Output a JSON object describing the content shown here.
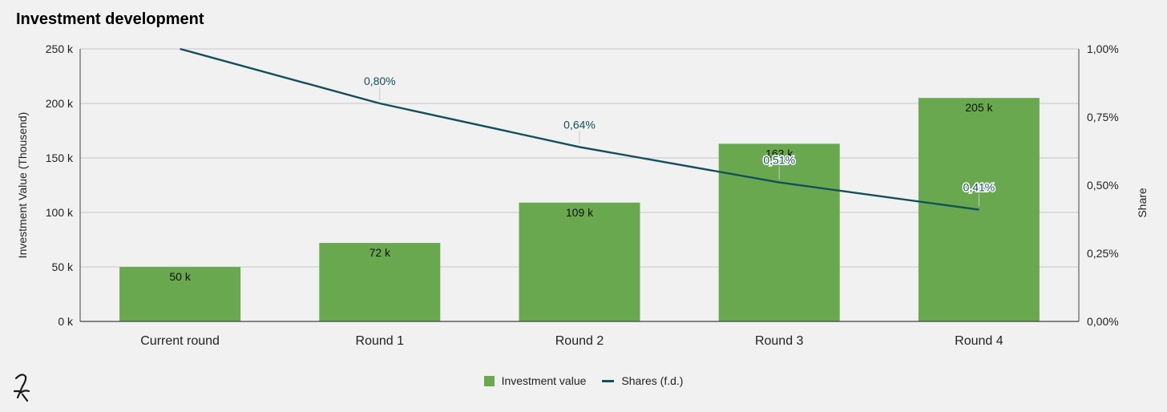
{
  "title": "Investment development",
  "colors": {
    "bar": "#6aa84f",
    "line": "#134f5c",
    "grid": "#c8c8c8",
    "axis": "#444444"
  },
  "chart_data": {
    "type": "bar",
    "title": "Investment development",
    "categories": [
      "Current round",
      "Round 1",
      "Round 2",
      "Round 3",
      "Round 4"
    ],
    "series": [
      {
        "name": "Investment value",
        "type": "bar",
        "axis": "left",
        "values": [
          50,
          72,
          109,
          163,
          205
        ],
        "labels": [
          "50 k",
          "72 k",
          "109 k",
          "163 k",
          "205 k"
        ]
      },
      {
        "name": "Shares (f.d.)",
        "type": "line",
        "axis": "right",
        "values": [
          1.0,
          0.8,
          0.64,
          0.51,
          0.41
        ],
        "labels": [
          "",
          "0,80%",
          "0,64%",
          "0,51%",
          "0,41%"
        ]
      }
    ],
    "ylabel": "Investment Value (Thousend)",
    "y2label": "Share",
    "ylim": [
      0,
      250
    ],
    "y2lim": [
      0,
      1.0
    ],
    "yticks": [
      "0 k",
      "50 k",
      "100 k",
      "150 k",
      "200 k",
      "250 k"
    ],
    "y2ticks": [
      "0,00%",
      "0,25%",
      "0,50%",
      "0,75%",
      "1,00%"
    ],
    "grid": true,
    "legend": "bottom"
  }
}
